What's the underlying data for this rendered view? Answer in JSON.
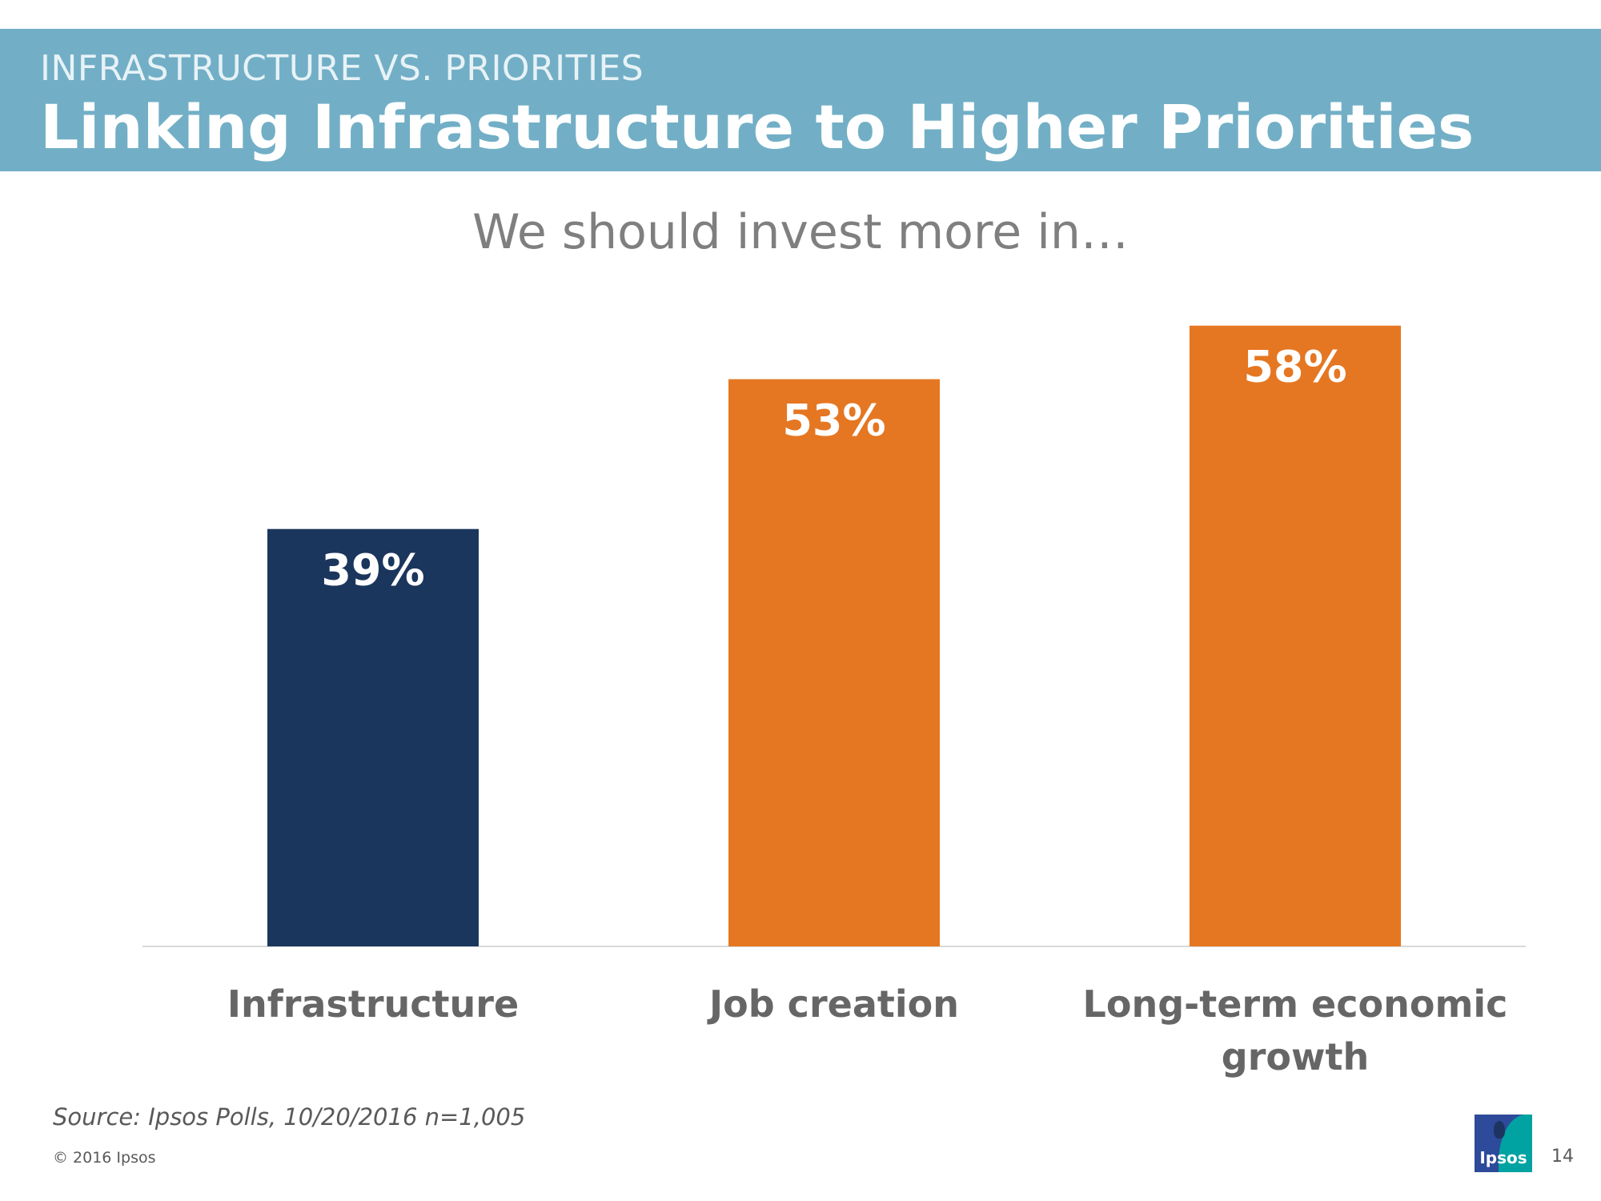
{
  "header": {
    "kicker": "INFRASTRUCTURE VS. PRIORITIES",
    "title": "Linking Infrastructure to Higher Priorities",
    "background_color": "#72afc6"
  },
  "chart_data": {
    "type": "bar",
    "title": "We should invest more in…",
    "categories": [
      [
        "Infrastructure"
      ],
      [
        "Job creation"
      ],
      [
        "Long-term economic",
        "growth"
      ]
    ],
    "values": [
      39,
      53,
      58
    ],
    "data_labels": [
      "39%",
      "53%",
      "58%"
    ],
    "colors": [
      "#1b365d",
      "#e57722",
      "#e57722"
    ],
    "ylim": [
      0,
      60
    ],
    "xlabel": "",
    "ylabel": "",
    "grid": false,
    "legend": "none"
  },
  "footer": {
    "source": "Source: Ipsos Polls, 10/20/2016 n=1,005",
    "copyright": "© 2016 Ipsos",
    "page_number": "14",
    "logo_text": "Ipsos"
  }
}
